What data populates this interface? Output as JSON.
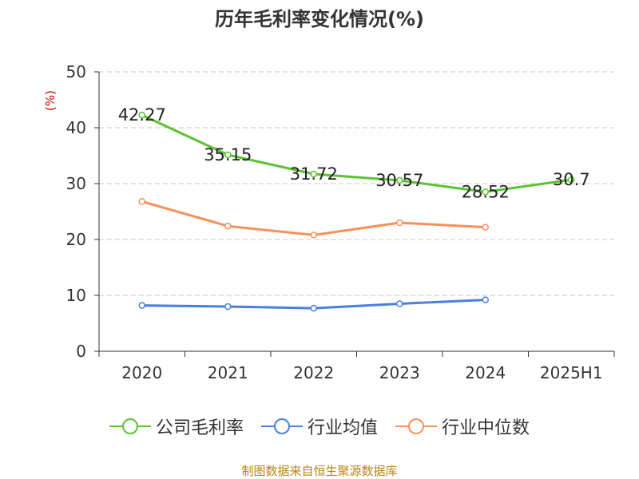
{
  "chart_data": {
    "type": "line",
    "title": "历年毛利率变化情况(%)",
    "ylabel": "(%)",
    "xlabel": "",
    "categories": [
      "2020",
      "2021",
      "2022",
      "2023",
      "2024",
      "2025H1"
    ],
    "ylim": [
      0,
      50
    ],
    "yticks": [
      0,
      10,
      20,
      30,
      40,
      50
    ],
    "grid": "horizontal dashed",
    "legend_position": "bottom",
    "series": [
      {
        "name": "公司毛利率",
        "color": "#5cc232",
        "values": [
          42.27,
          35.15,
          31.72,
          30.57,
          28.52,
          30.7
        ],
        "labels": [
          "42.27",
          "35.15",
          "31.72",
          "30.57",
          "28.52",
          "30.7"
        ]
      },
      {
        "name": "行业均值",
        "color": "#4a7fdb",
        "values": [
          8.2,
          8.0,
          7.7,
          8.5,
          9.2,
          null
        ]
      },
      {
        "name": "行业中位数",
        "color": "#f7915a",
        "values": [
          26.8,
          22.4,
          20.8,
          23.0,
          22.2,
          null
        ]
      }
    ]
  },
  "source": "制图数据来自恒生聚源数据库"
}
